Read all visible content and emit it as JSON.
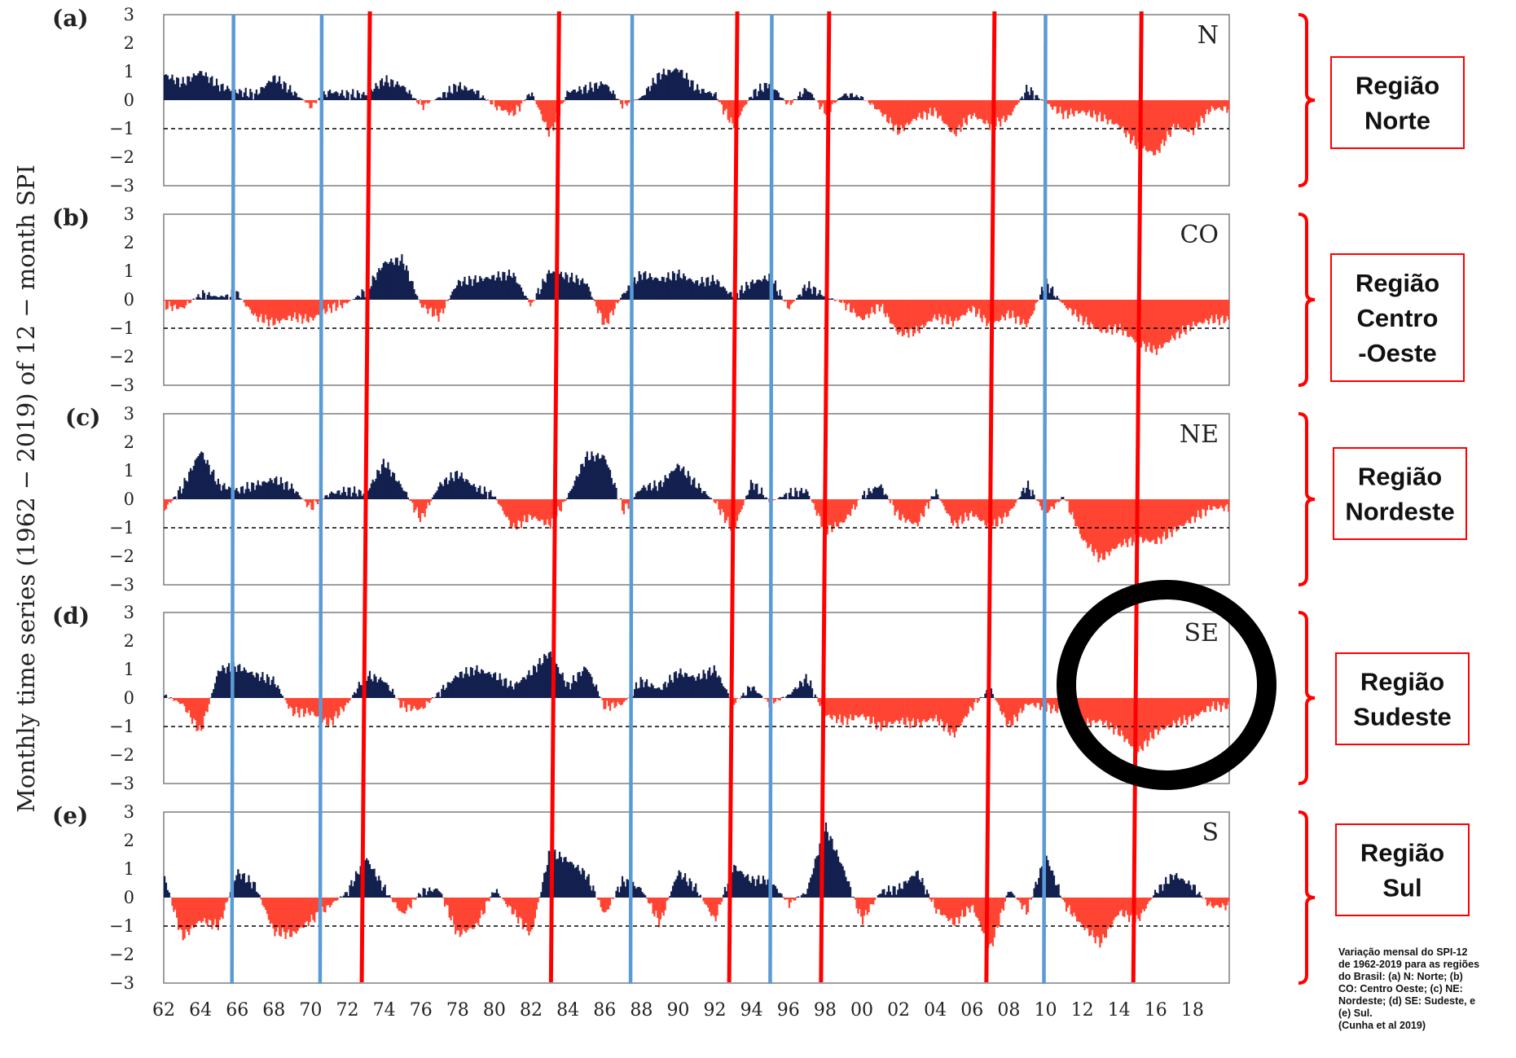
{
  "chart_data": {
    "type": "area",
    "ylabel": "Monthly time series (1962 − 2019) of 12 − month  SPI",
    "x_start_year": 1962,
    "x_end_year": 2019,
    "xticks": [
      "62",
      "64",
      "66",
      "68",
      "70",
      "72",
      "74",
      "76",
      "78",
      "80",
      "82",
      "84",
      "86",
      "88",
      "90",
      "92",
      "94",
      "96",
      "98",
      "00",
      "02",
      "04",
      "06",
      "08",
      "10",
      "12",
      "14",
      "16",
      "18"
    ],
    "yticks": [
      "3",
      "2",
      "1",
      "0",
      "−1",
      "−2",
      "−3"
    ],
    "ylim": [
      -3,
      3
    ],
    "threshold": -1,
    "positive_color": "#13204f",
    "negative_color": "#ff4433",
    "panels": [
      {
        "letter": "(a)",
        "code": "N",
        "region": [
          "Região",
          "Norte"
        ],
        "series": [
          [
            1962,
            0.9
          ],
          [
            1963,
            0.6
          ],
          [
            1964,
            1.0
          ],
          [
            1965,
            0.5
          ],
          [
            1966,
            0.3
          ],
          [
            1967,
            0.2
          ],
          [
            1968,
            0.8
          ],
          [
            1969,
            0.3
          ],
          [
            1970,
            -0.2
          ],
          [
            1971,
            0.3
          ],
          [
            1972,
            0.2
          ],
          [
            1973,
            0.2
          ],
          [
            1974,
            0.7
          ],
          [
            1975,
            0.5
          ],
          [
            1976,
            -0.2
          ],
          [
            1977,
            0.1
          ],
          [
            1978,
            0.5
          ],
          [
            1979,
            0.3
          ],
          [
            1980,
            -0.2
          ],
          [
            1981,
            -0.5
          ],
          [
            1982,
            0.3
          ],
          [
            1983,
            -1.2
          ],
          [
            1984,
            0.3
          ],
          [
            1985,
            0.4
          ],
          [
            1986,
            0.6
          ],
          [
            1987,
            -0.2
          ],
          [
            1988,
            0.1
          ],
          [
            1989,
            0.9
          ],
          [
            1990,
            1.1
          ],
          [
            1991,
            0.4
          ],
          [
            1992,
            0.2
          ],
          [
            1993,
            -0.9
          ],
          [
            1994,
            0.2
          ],
          [
            1995,
            0.6
          ],
          [
            1996,
            -0.2
          ],
          [
            1997,
            0.4
          ],
          [
            1998,
            -0.4
          ],
          [
            1999,
            0.2
          ],
          [
            2000,
            0.1
          ],
          [
            2001,
            -0.4
          ],
          [
            2002,
            -1.1
          ],
          [
            2003,
            -0.6
          ],
          [
            2004,
            -0.4
          ],
          [
            2005,
            -1.2
          ],
          [
            2006,
            -0.5
          ],
          [
            2007,
            -0.9
          ],
          [
            2008,
            -0.6
          ],
          [
            2009,
            0.4
          ],
          [
            2010,
            -0.1
          ],
          [
            2011,
            -0.5
          ],
          [
            2012,
            -0.4
          ],
          [
            2013,
            -0.6
          ],
          [
            2014,
            -0.9
          ],
          [
            2015,
            -1.6
          ],
          [
            2016,
            -1.9
          ],
          [
            2017,
            -0.9
          ],
          [
            2018,
            -1.1
          ],
          [
            2019,
            -0.3
          ]
        ]
      },
      {
        "letter": "(b)",
        "code": "CO",
        "region": [
          "Região",
          "Centro",
          "-Oeste"
        ],
        "series": [
          [
            1962,
            -0.2
          ],
          [
            1963,
            -0.3
          ],
          [
            1964,
            0.2
          ],
          [
            1965,
            0.1
          ],
          [
            1966,
            0.2
          ],
          [
            1967,
            -0.6
          ],
          [
            1968,
            -0.8
          ],
          [
            1969,
            -0.6
          ],
          [
            1970,
            -0.7
          ],
          [
            1971,
            -0.3
          ],
          [
            1972,
            -0.1
          ],
          [
            1973,
            0.3
          ],
          [
            1974,
            1.3
          ],
          [
            1975,
            1.4
          ],
          [
            1976,
            -0.2
          ],
          [
            1977,
            -0.6
          ],
          [
            1978,
            0.6
          ],
          [
            1979,
            0.7
          ],
          [
            1980,
            0.8
          ],
          [
            1981,
            0.9
          ],
          [
            1982,
            -0.2
          ],
          [
            1983,
            1.0
          ],
          [
            1984,
            0.8
          ],
          [
            1985,
            0.6
          ],
          [
            1986,
            -0.9
          ],
          [
            1987,
            0.2
          ],
          [
            1988,
            0.9
          ],
          [
            1989,
            0.7
          ],
          [
            1990,
            0.9
          ],
          [
            1991,
            0.6
          ],
          [
            1992,
            0.7
          ],
          [
            1993,
            0.1
          ],
          [
            1994,
            0.6
          ],
          [
            1995,
            0.8
          ],
          [
            1996,
            -0.3
          ],
          [
            1997,
            0.5
          ],
          [
            1998,
            0.1
          ],
          [
            1999,
            -0.1
          ],
          [
            2000,
            -0.7
          ],
          [
            2001,
            -0.2
          ],
          [
            2002,
            -1.2
          ],
          [
            2003,
            -1.1
          ],
          [
            2004,
            -0.6
          ],
          [
            2005,
            -0.8
          ],
          [
            2006,
            -0.3
          ],
          [
            2007,
            -0.9
          ],
          [
            2008,
            -0.5
          ],
          [
            2009,
            -0.9
          ],
          [
            2010,
            0.6
          ],
          [
            2011,
            -0.2
          ],
          [
            2012,
            -0.7
          ],
          [
            2013,
            -1.1
          ],
          [
            2014,
            -1.0
          ],
          [
            2015,
            -1.5
          ],
          [
            2016,
            -1.8
          ],
          [
            2017,
            -1.3
          ],
          [
            2018,
            -0.9
          ],
          [
            2019,
            -0.7
          ]
        ]
      },
      {
        "letter": "(c)",
        "code": "NE",
        "region": [
          "Região",
          "Nordeste"
        ],
        "series": [
          [
            1962,
            -0.4
          ],
          [
            1963,
            0.4
          ],
          [
            1964,
            1.7
          ],
          [
            1965,
            0.5
          ],
          [
            1966,
            0.3
          ],
          [
            1967,
            0.5
          ],
          [
            1968,
            0.7
          ],
          [
            1969,
            0.4
          ],
          [
            1970,
            -0.3
          ],
          [
            1971,
            0.2
          ],
          [
            1972,
            0.3
          ],
          [
            1973,
            0.2
          ],
          [
            1974,
            1.3
          ],
          [
            1975,
            0.4
          ],
          [
            1976,
            -0.7
          ],
          [
            1977,
            0.5
          ],
          [
            1978,
            0.9
          ],
          [
            1979,
            0.4
          ],
          [
            1980,
            0.1
          ],
          [
            1981,
            -1.0
          ],
          [
            1982,
            -0.6
          ],
          [
            1983,
            -0.9
          ],
          [
            1984,
            0.1
          ],
          [
            1985,
            1.5
          ],
          [
            1986,
            1.5
          ],
          [
            1987,
            -0.4
          ],
          [
            1988,
            0.4
          ],
          [
            1989,
            0.5
          ],
          [
            1990,
            1.2
          ],
          [
            1991,
            0.5
          ],
          [
            1992,
            -0.1
          ],
          [
            1993,
            -1.1
          ],
          [
            1994,
            0.6
          ],
          [
            1995,
            -0.1
          ],
          [
            1996,
            0.2
          ],
          [
            1997,
            0.3
          ],
          [
            1998,
            -1.1
          ],
          [
            1999,
            -0.8
          ],
          [
            2000,
            0.1
          ],
          [
            2001,
            0.5
          ],
          [
            2002,
            -0.6
          ],
          [
            2003,
            -0.9
          ],
          [
            2004,
            0.3
          ],
          [
            2005,
            -0.9
          ],
          [
            2006,
            -0.5
          ],
          [
            2007,
            -1.0
          ],
          [
            2008,
            -0.5
          ],
          [
            2009,
            0.5
          ],
          [
            2010,
            -0.5
          ],
          [
            2011,
            0.1
          ],
          [
            2012,
            -1.4
          ],
          [
            2013,
            -2.1
          ],
          [
            2014,
            -1.6
          ],
          [
            2015,
            -1.4
          ],
          [
            2016,
            -1.5
          ],
          [
            2017,
            -1.1
          ],
          [
            2018,
            -0.7
          ],
          [
            2019,
            -0.3
          ]
        ]
      },
      {
        "letter": "(d)",
        "code": "SE",
        "region": [
          "Região",
          "Sudeste"
        ],
        "series": [
          [
            1962,
            0.1
          ],
          [
            1963,
            -0.2
          ],
          [
            1964,
            -1.2
          ],
          [
            1965,
            1.0
          ],
          [
            1966,
            1.1
          ],
          [
            1967,
            0.8
          ],
          [
            1968,
            0.6
          ],
          [
            1969,
            -0.5
          ],
          [
            1970,
            -0.5
          ],
          [
            1971,
            -0.9
          ],
          [
            1972,
            -0.2
          ],
          [
            1973,
            0.8
          ],
          [
            1974,
            0.6
          ],
          [
            1975,
            -0.3
          ],
          [
            1976,
            -0.4
          ],
          [
            1977,
            0.2
          ],
          [
            1978,
            0.8
          ],
          [
            1979,
            1.0
          ],
          [
            1980,
            0.8
          ],
          [
            1981,
            0.4
          ],
          [
            1982,
            0.9
          ],
          [
            1983,
            1.6
          ],
          [
            1984,
            0.4
          ],
          [
            1985,
            1.1
          ],
          [
            1986,
            -0.3
          ],
          [
            1987,
            -0.2
          ],
          [
            1988,
            0.6
          ],
          [
            1989,
            0.3
          ],
          [
            1990,
            0.9
          ],
          [
            1991,
            0.7
          ],
          [
            1992,
            1.0
          ],
          [
            1993,
            -0.2
          ],
          [
            1994,
            0.4
          ],
          [
            1995,
            -0.2
          ],
          [
            1996,
            0.1
          ],
          [
            1997,
            0.7
          ],
          [
            1998,
            -0.6
          ],
          [
            1999,
            -0.8
          ],
          [
            2000,
            -0.6
          ],
          [
            2001,
            -1.0
          ],
          [
            2002,
            -0.8
          ],
          [
            2003,
            -0.9
          ],
          [
            2004,
            -0.7
          ],
          [
            2005,
            -1.3
          ],
          [
            2006,
            -0.3
          ],
          [
            2007,
            0.3
          ],
          [
            2008,
            -1.0
          ],
          [
            2009,
            -0.2
          ],
          [
            2010,
            -0.3
          ],
          [
            2011,
            -0.5
          ],
          [
            2012,
            -0.9
          ],
          [
            2013,
            -0.8
          ],
          [
            2014,
            -1.2
          ],
          [
            2015,
            -1.9
          ],
          [
            2016,
            -1.2
          ],
          [
            2017,
            -0.9
          ],
          [
            2018,
            -0.7
          ],
          [
            2019,
            -0.3
          ]
        ]
      },
      {
        "letter": "(e)",
        "code": "S",
        "region": [
          "Região",
          "Sul"
        ],
        "series": [
          [
            1962,
            0.8
          ],
          [
            1963,
            -1.4
          ],
          [
            1964,
            -0.8
          ],
          [
            1965,
            -1.0
          ],
          [
            1966,
            0.9
          ],
          [
            1967,
            0.4
          ],
          [
            1968,
            -1.2
          ],
          [
            1969,
            -1.3
          ],
          [
            1970,
            -0.8
          ],
          [
            1971,
            -0.3
          ],
          [
            1972,
            0.2
          ],
          [
            1973,
            1.4
          ],
          [
            1974,
            0.3
          ],
          [
            1975,
            -0.6
          ],
          [
            1976,
            0.2
          ],
          [
            1977,
            0.3
          ],
          [
            1978,
            -1.3
          ],
          [
            1979,
            -1.0
          ],
          [
            1980,
            0.3
          ],
          [
            1981,
            -0.5
          ],
          [
            1982,
            -1.3
          ],
          [
            1983,
            1.6
          ],
          [
            1984,
            1.3
          ],
          [
            1985,
            0.8
          ],
          [
            1986,
            -0.6
          ],
          [
            1987,
            0.6
          ],
          [
            1988,
            0.3
          ],
          [
            1989,
            -0.9
          ],
          [
            1990,
            0.9
          ],
          [
            1991,
            0.3
          ],
          [
            1992,
            -0.8
          ],
          [
            1993,
            1.1
          ],
          [
            1994,
            0.6
          ],
          [
            1995,
            0.6
          ],
          [
            1996,
            -0.2
          ],
          [
            1997,
            0.2
          ],
          [
            1998,
            2.5
          ],
          [
            1999,
            1.0
          ],
          [
            2000,
            -0.8
          ],
          [
            2001,
            0.2
          ],
          [
            2002,
            0.3
          ],
          [
            2003,
            0.9
          ],
          [
            2004,
            -0.4
          ],
          [
            2005,
            -0.9
          ],
          [
            2006,
            -0.3
          ],
          [
            2007,
            -1.8
          ],
          [
            2008,
            0.3
          ],
          [
            2009,
            -0.5
          ],
          [
            2010,
            1.5
          ],
          [
            2011,
            -0.2
          ],
          [
            2012,
            -1.0
          ],
          [
            2013,
            -1.6
          ],
          [
            2014,
            -0.5
          ],
          [
            2015,
            -0.8
          ],
          [
            2016,
            0.2
          ],
          [
            2017,
            0.8
          ],
          [
            2018,
            0.4
          ],
          [
            2019,
            -0.3
          ]
        ]
      }
    ],
    "vertical_lines": {
      "blue": [
        1965.8,
        1970.6,
        1987.5,
        1995.1,
        2010.0
      ],
      "red": [
        1973.0,
        1983.3,
        1993.0,
        1998.0,
        2007.0,
        2015.0
      ]
    },
    "blue_line_color": "#5b9bd5",
    "red_line_color": "#ff0000",
    "highlight_ring_color": "#000000",
    "caption": "Variação mensal do SPI-12\nde 1962-2019 para as regiões\ndo Brasil: (a) N: Norte; (b)\nCO: Centro Oeste; (c) NE:\nNordeste; (d) SE: Sudeste, e\n(e) Sul.\n(Cunha et al 2019)"
  }
}
